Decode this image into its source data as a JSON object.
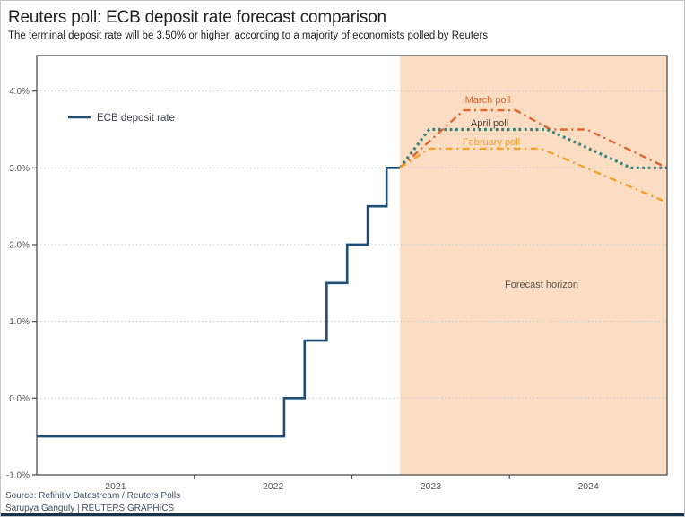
{
  "page": {
    "title": "Reuters poll: ECB deposit rate forecast comparison",
    "subtitle": "The terminal deposit rate will be 3.50% or higher, according to a majority of economists polled by Reuters",
    "source_line1": "Source: Refinitiv Datastream / Reuters Polls",
    "source_line2": "Sarupya Ganguly | REUTERS GRAPHICS"
  },
  "chart_data": {
    "type": "line",
    "title": "Reuters poll: ECB deposit rate forecast comparison",
    "xlabel": "",
    "ylabel": "",
    "x_axis": {
      "range": [
        2021.0,
        2025.0
      ],
      "year_labels": [
        "2021",
        "2022",
        "2023",
        "2024"
      ],
      "year_label_centers": [
        2021.5,
        2022.5,
        2023.5,
        2024.5
      ],
      "boundary_ticks": [
        2022.0,
        2023.0,
        2024.0
      ]
    },
    "y_axis": {
      "range": [
        -1.0,
        4.46
      ],
      "ticks": [
        {
          "value": 4.0,
          "label": "4.0%"
        },
        {
          "value": 3.0,
          "label": "3.0%"
        },
        {
          "value": 2.0,
          "label": "2.0%"
        },
        {
          "value": 1.0,
          "label": "1.0%"
        },
        {
          "value": 0.0,
          "label": "0.0%"
        },
        {
          "value": -1.0,
          "label": "-1.0%"
        }
      ],
      "gridline_values": [
        4.0,
        3.0,
        2.0,
        1.0,
        0.0
      ]
    },
    "forecast_region": {
      "start": 2023.305,
      "end": 2025.0,
      "label": "Forecast horizon",
      "fill_color": "#FBDDC3"
    },
    "actual_series": {
      "name": "ECB deposit rate",
      "color": "#1E4E74",
      "style": "step",
      "points": [
        [
          2021.0,
          -0.5
        ],
        [
          2022.57,
          0.0
        ],
        [
          2022.7,
          0.75
        ],
        [
          2022.84,
          1.5
        ],
        [
          2022.97,
          2.0
        ],
        [
          2023.1,
          2.5
        ],
        [
          2023.22,
          3.0
        ]
      ],
      "end_x": 2023.305
    },
    "forecast_series": [
      {
        "name": "March poll",
        "color": "#E0662F",
        "label_color": "#E0662F",
        "dash": "8 4.5 2 4.5",
        "width": 2.4,
        "points": [
          [
            2023.305,
            3.0
          ],
          [
            2023.71,
            3.75
          ],
          [
            2024.04,
            3.75
          ],
          [
            2024.26,
            3.5
          ],
          [
            2024.49,
            3.5
          ],
          [
            2025.0,
            3.0
          ]
        ]
      },
      {
        "name": "April poll",
        "color": "#38807A",
        "label_color": "#3f3f3f",
        "dash": "2.8 3.6",
        "width": 3.2,
        "points": [
          [
            2023.305,
            3.0
          ],
          [
            2023.49,
            3.5
          ],
          [
            2024.24,
            3.5
          ],
          [
            2024.77,
            3.0
          ],
          [
            2025.0,
            3.0
          ]
        ]
      },
      {
        "name": "February poll",
        "color": "#F4A12E",
        "label_color": "#F4A12E",
        "dash": "8 4.5 2 4.5",
        "width": 2.4,
        "points": [
          [
            2023.305,
            3.0
          ],
          [
            2023.49,
            3.25
          ],
          [
            2024.2,
            3.25
          ],
          [
            2025.0,
            2.55
          ]
        ]
      }
    ],
    "legend_position": "upper-left-inside"
  }
}
